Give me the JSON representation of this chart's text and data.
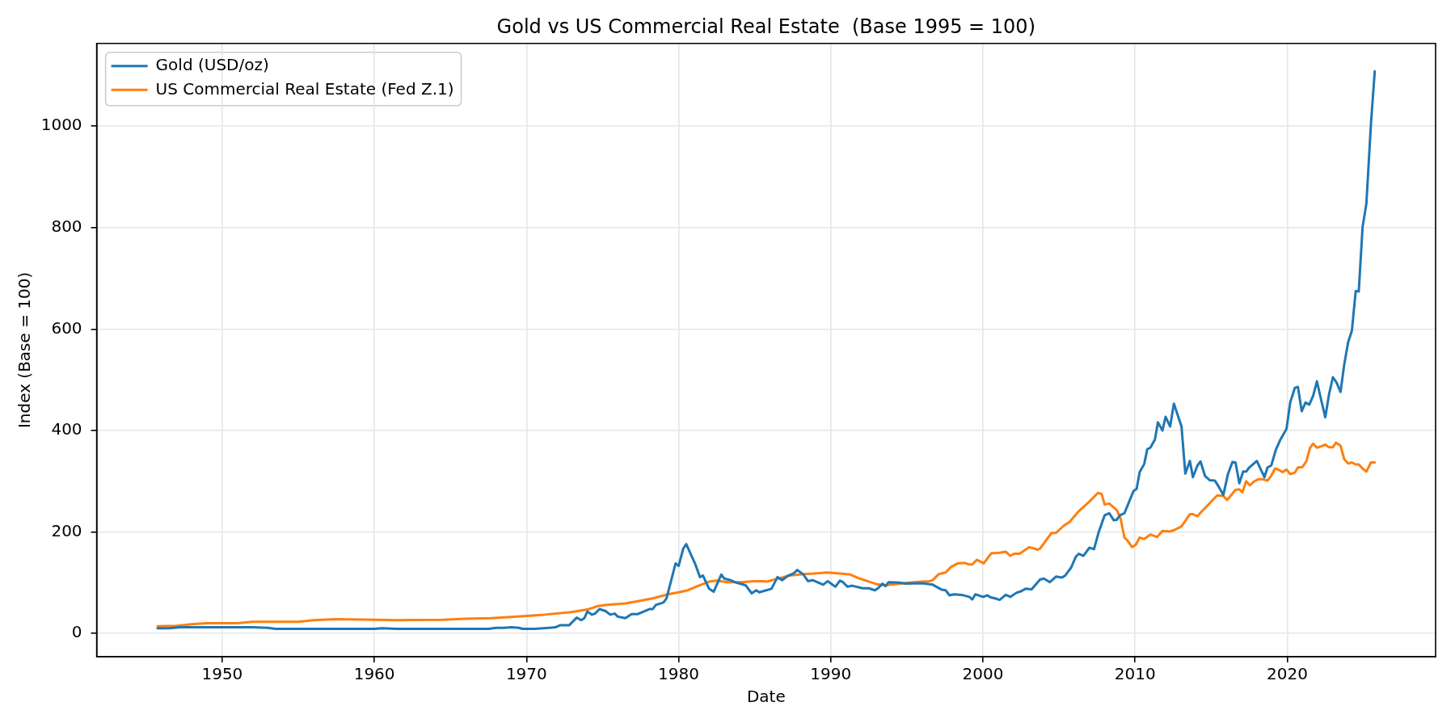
{
  "chart_data": {
    "type": "line",
    "title": "Gold vs US Commercial Real Estate  (Base 1995 = 100)",
    "xlabel": "Date",
    "ylabel": "Index (Base = 100)",
    "series": [
      {
        "name": "Gold (USD/oz)",
        "color": "#1f77b4",
        "x": [
          1945.75,
          1946.5,
          1947.25,
          1948,
          1950,
          1952,
          1953,
          1953.5,
          1960,
          1960.5,
          1961.5,
          1967.5,
          1968,
          1968.5,
          1969,
          1969.5,
          1969.75,
          1970.5,
          1971.5,
          1971.9,
          1972.2,
          1972.8,
          1973.3,
          1973.6,
          1973.8,
          1974,
          1974.3,
          1974.5,
          1974.8,
          1975.2,
          1975.5,
          1975.8,
          1976,
          1976.5,
          1976.9,
          1977.3,
          1977.7,
          1978.1,
          1978.3,
          1978.5,
          1979,
          1979.2,
          1979.8,
          1980,
          1980.3,
          1980.5,
          1981.1,
          1981.4,
          1981.6,
          1982,
          1982.3,
          1982.8,
          1983,
          1983.4,
          1983.8,
          1984.4,
          1984.8,
          1985.1,
          1985.3,
          1986.1,
          1986.5,
          1986.8,
          1987.2,
          1987.55,
          1987.8,
          1988.2,
          1988.5,
          1988.8,
          1989.5,
          1989.8,
          1990.3,
          1990.6,
          1990.8,
          1991.1,
          1991.4,
          1992.1,
          1992.5,
          1992.9,
          1993.1,
          1993.4,
          1993.6,
          1993.8,
          1994.5,
          1994.9,
          1996,
          1996.7,
          1997.3,
          1997.55,
          1997.8,
          1998.1,
          1998.6,
          1999.1,
          1999.3,
          1999.5,
          2000,
          2000.3,
          2000.5,
          2000.8,
          2001.1,
          2001.5,
          2001.8,
          2002.2,
          2002.5,
          2002.8,
          2003.2,
          2003.75,
          2004,
          2004.4,
          2004.8,
          2005.2,
          2005.4,
          2005.8,
          2006.1,
          2006.3,
          2006.6,
          2007,
          2007.3,
          2007.6,
          2008,
          2008.3,
          2008.6,
          2008.8,
          2009,
          2009.3,
          2009.9,
          2010.1,
          2010.3,
          2010.6,
          2010.8,
          2011,
          2011.3,
          2011.5,
          2011.8,
          2012,
          2012.3,
          2012.55,
          2013.05,
          2013.3,
          2013.6,
          2013.8,
          2014.1,
          2014.3,
          2014.6,
          2014.9,
          2015.25,
          2015.5,
          2015.8,
          2016.1,
          2016.4,
          2016.6,
          2016.85,
          2017.1,
          2017.3,
          2017.5,
          2018,
          2018.5,
          2018.7,
          2018.95,
          2019.25,
          2019.55,
          2019.95,
          2020.2,
          2020.5,
          2020.7,
          2020.95,
          2021.2,
          2021.45,
          2021.7,
          2021.95,
          2022.2,
          2022.5,
          2022.75,
          2023,
          2023.25,
          2023.5,
          2023.75,
          2024,
          2024.25,
          2024.5,
          2024.7,
          2024.95,
          2025.2,
          2025.5,
          2025.75
        ],
        "values": [
          10,
          10,
          12,
          12,
          12,
          12,
          11,
          9,
          9,
          10,
          9,
          9,
          11,
          11,
          12,
          11,
          9,
          9,
          11,
          12,
          16,
          16,
          31,
          26,
          30,
          43,
          37,
          39,
          48,
          44,
          37,
          39,
          33,
          30,
          38,
          38,
          43,
          48,
          48,
          56,
          61,
          69,
          138,
          133,
          167,
          176,
          136,
          111,
          114,
          88,
          82,
          116,
          108,
          105,
          100,
          95,
          79,
          85,
          81,
          88,
          111,
          105,
          114,
          118,
          125,
          116,
          103,
          105,
          96,
          103,
          92,
          104,
          101,
          92,
          94,
          89,
          89,
          85,
          89,
          98,
          93,
          101,
          100,
          98,
          99,
          96,
          86,
          85,
          75,
          77,
          76,
          72,
          67,
          77,
          72,
          75,
          71,
          69,
          66,
          76,
          72,
          80,
          83,
          88,
          87,
          106,
          108,
          101,
          112,
          110,
          114,
          130,
          151,
          157,
          153,
          169,
          166,
          199,
          233,
          237,
          223,
          224,
          233,
          237,
          281,
          285,
          318,
          334,
          363,
          366,
          382,
          416,
          400,
          427,
          408,
          453,
          408,
          315,
          340,
          308,
          331,
          339,
          310,
          302,
          301,
          289,
          273,
          314,
          338,
          337,
          296,
          319,
          319,
          327,
          340,
          308,
          327,
          331,
          362,
          382,
          403,
          456,
          484,
          486,
          438,
          455,
          451,
          468,
          497,
          464,
          426,
          472,
          505,
          494,
          476,
          531,
          574,
          597,
          675,
          674,
          801,
          847,
          1004,
          1108
        ]
      },
      {
        "name": "US Commercial Real Estate (Fed Z.1)",
        "color": "#ff7f0e",
        "x": [
          1945.75,
          1947,
          1948,
          1949,
          1951,
          1952,
          1954,
          1955,
          1956,
          1957.5,
          1960,
          1961.5,
          1964.5,
          1966,
          1967.7,
          1969.2,
          1970.2,
          1971.2,
          1972.95,
          1974,
          1974.7,
          1975.2,
          1976.5,
          1977.4,
          1978.3,
          1979.3,
          1980,
          1980.6,
          1981.3,
          1982,
          1982.5,
          1983.2,
          1984.1,
          1985,
          1985.5,
          1985.8,
          1986.4,
          1987.3,
          1988.2,
          1988.9,
          1989.8,
          1990.6,
          1991.3,
          1991.9,
          1992.4,
          1993,
          1993.5,
          1994.2,
          1995.1,
          1996,
          1996.5,
          1996.7,
          1997.1,
          1997.55,
          1997.9,
          1998.35,
          1998.8,
          1999.05,
          1999.3,
          1999.6,
          2000.05,
          2000.55,
          2001.1,
          2001.5,
          2001.8,
          2002.05,
          2002.4,
          2003.05,
          2003.6,
          2003.75,
          2004.5,
          2004.8,
          2005.3,
          2005.7,
          2006.3,
          2007,
          2007.55,
          2007.8,
          2008,
          2008.3,
          2008.8,
          2009.05,
          2009.3,
          2009.5,
          2009.8,
          2010.05,
          2010.3,
          2010.6,
          2011,
          2011.45,
          2011.8,
          2012.3,
          2012.6,
          2013.05,
          2013.6,
          2013.8,
          2014.1,
          2014.4,
          2014.6,
          2015.1,
          2015.4,
          2015.8,
          2016.05,
          2016.6,
          2016.85,
          2017.05,
          2017.3,
          2017.55,
          2017.85,
          2018.1,
          2018.4,
          2018.7,
          2018.95,
          2019.2,
          2019.4,
          2019.7,
          2019.95,
          2020.2,
          2020.5,
          2020.7,
          2021,
          2021.25,
          2021.5,
          2021.7,
          2021.95,
          2022.25,
          2022.5,
          2022.75,
          2023,
          2023.2,
          2023.5,
          2023.75,
          2024,
          2024.25,
          2024.5,
          2024.7,
          2024.95,
          2025.2,
          2025.5,
          2025.75
        ],
        "values": [
          14,
          15,
          18,
          20,
          20,
          23,
          23,
          23,
          26,
          28,
          27,
          26,
          27,
          29,
          30,
          33,
          35,
          37,
          42,
          47,
          54,
          56,
          59,
          64,
          69,
          77,
          81,
          85,
          94,
          102,
          104,
          101,
          101,
          103,
          103,
          102,
          107,
          114,
          117,
          118,
          120,
          118,
          116,
          108,
          103,
          97,
          95,
          97,
          100,
          102,
          103,
          105,
          117,
          120,
          131,
          138,
          139,
          136,
          136,
          145,
          138,
          158,
          159,
          161,
          153,
          157,
          157,
          170,
          165,
          167,
          198,
          198,
          212,
          220,
          241,
          260,
          277,
          275,
          254,
          256,
          243,
          226,
          189,
          183,
          170,
          175,
          189,
          186,
          195,
          190,
          202,
          201,
          204,
          211,
          235,
          235,
          231,
          241,
          247,
          263,
          272,
          271,
          263,
          283,
          284,
          278,
          300,
          292,
          300,
          304,
          304,
          301,
          311,
          325,
          323,
          318,
          323,
          314,
          317,
          327,
          328,
          339,
          366,
          374,
          366,
          369,
          372,
          367,
          367,
          376,
          370,
          343,
          335,
          337,
          333,
          333,
          325,
          319,
          337,
          337
        ]
      }
    ],
    "xlim": [
      1941.75,
      2029.75
    ],
    "ylim": [
      -46,
      1163
    ],
    "xticks": [
      1950,
      1960,
      1970,
      1980,
      1990,
      2000,
      2010,
      2020
    ],
    "yticks": [
      0,
      200,
      400,
      600,
      800,
      1000
    ],
    "grid": true,
    "legend": "top left"
  }
}
